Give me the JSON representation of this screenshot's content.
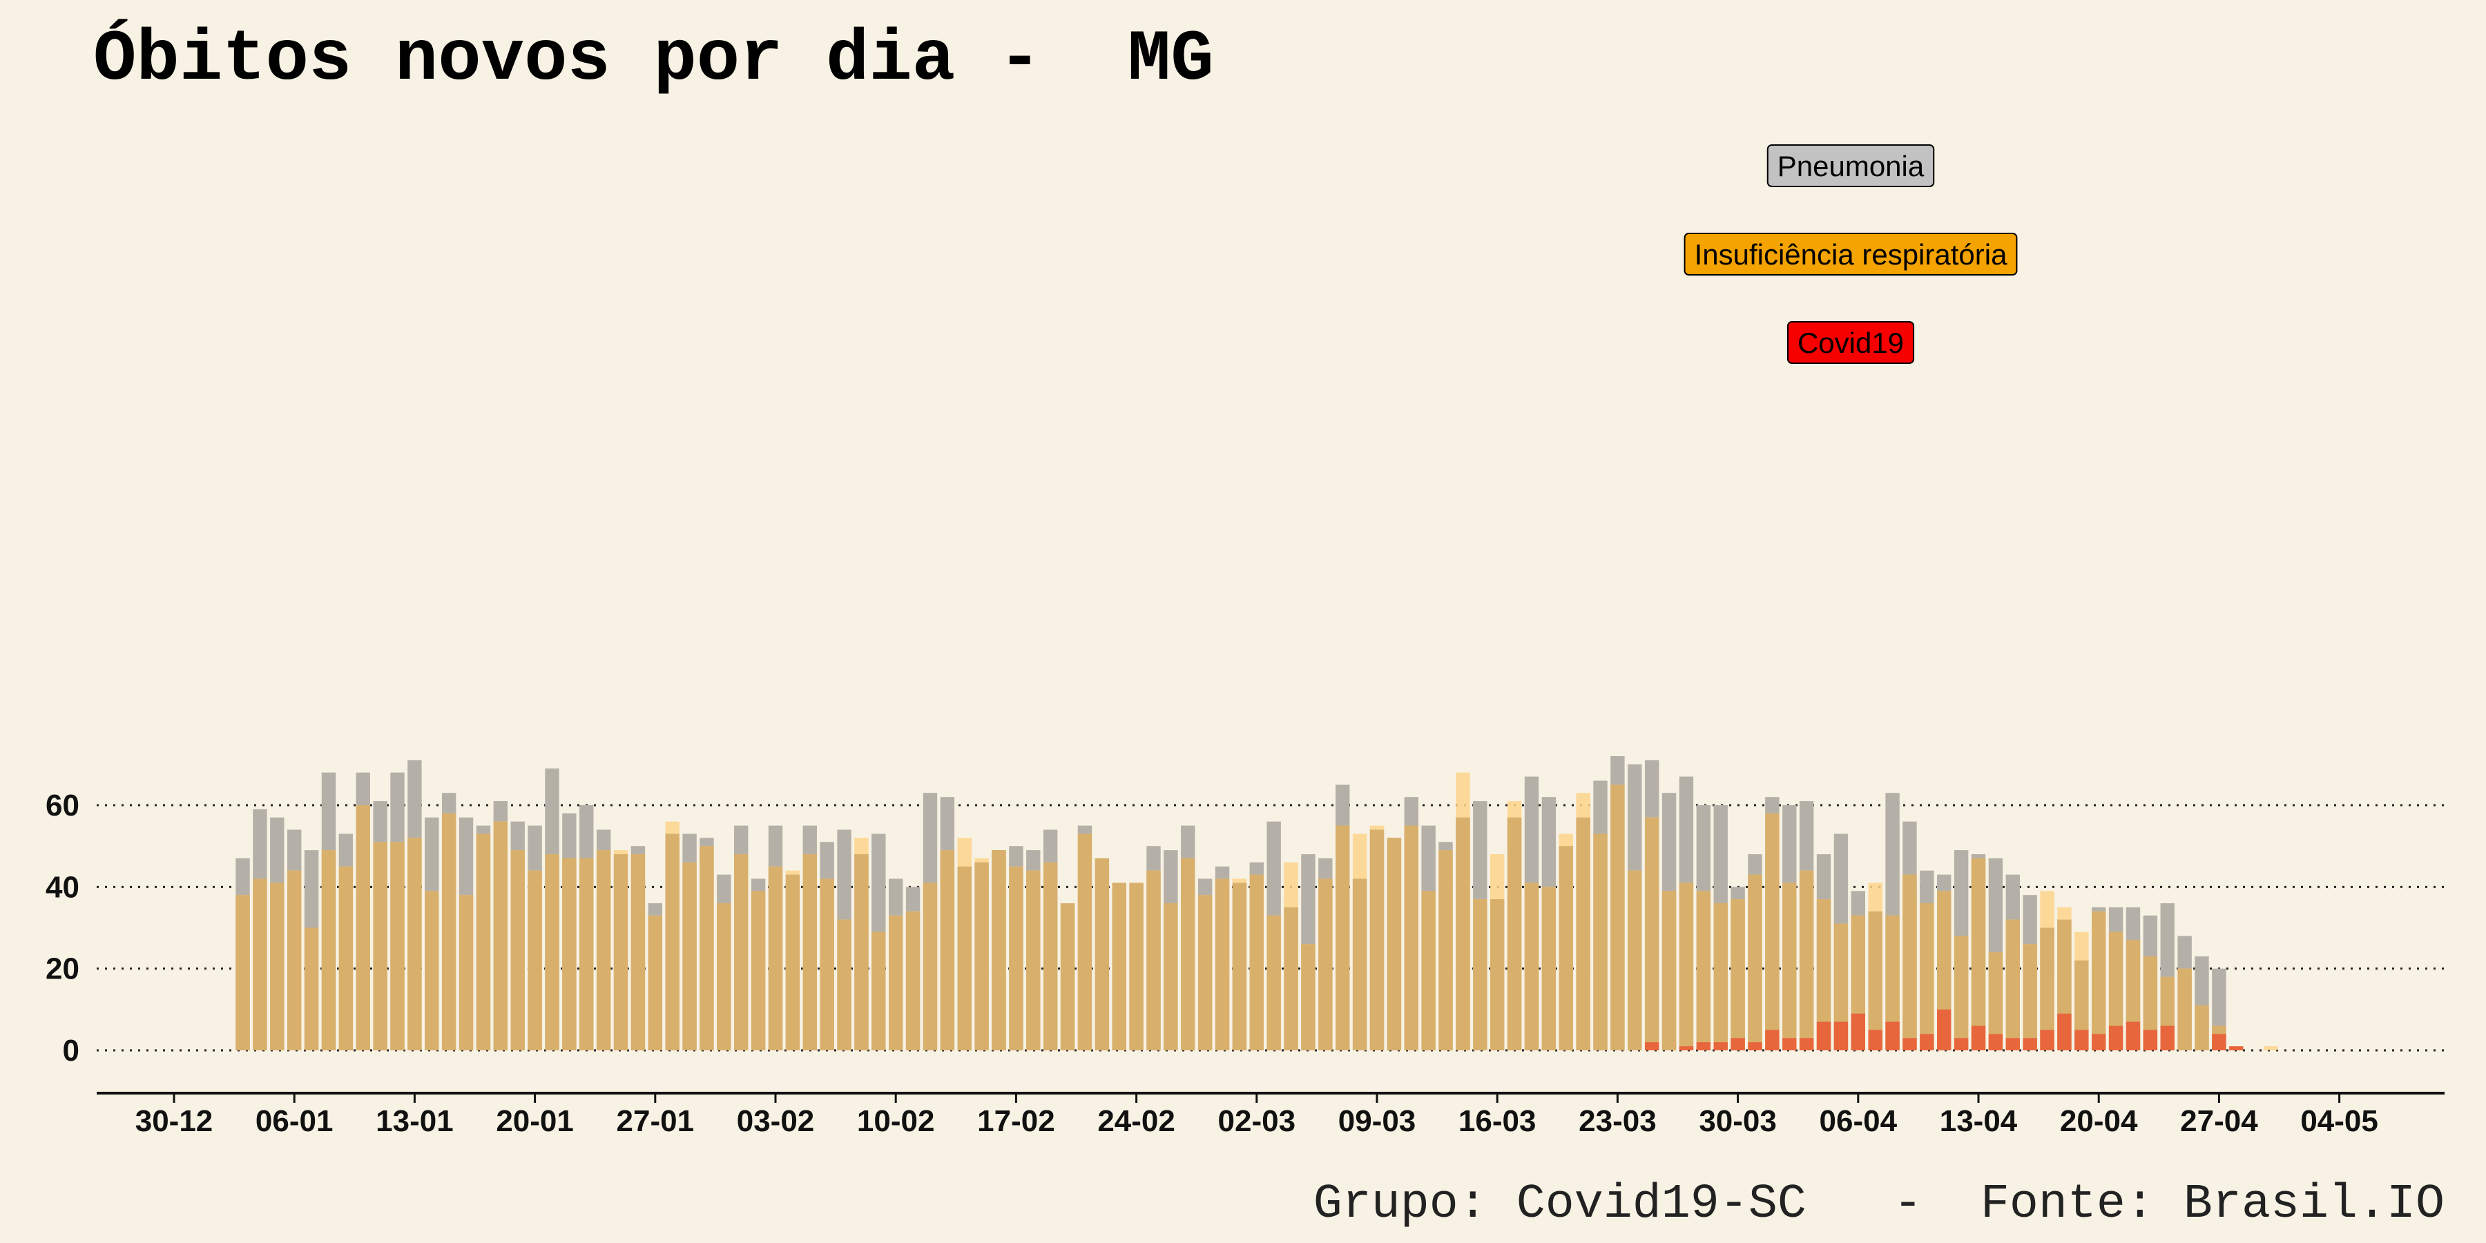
{
  "title": "Óbitos novos por dia -  MG",
  "caption": "Grupo: Covid19-SC   -  Fonte: Brasil.IO",
  "colors": {
    "background": "#f8f2e4",
    "pneumonia": "#b5b0a7",
    "insuficiencia": "#fdd58b",
    "overlap": "#d8b06c",
    "covid": "#e8663c",
    "legend_pneumonia": "#c2c2c2",
    "legend_insuficiencia": "#f5a300",
    "legend_covid": "#f70000"
  },
  "chart_data": {
    "type": "bar",
    "x_start": "2019-12-30",
    "series": [
      {
        "name": "Pneumonia",
        "color": "#b5b0a7",
        "values": [
          0,
          0,
          0,
          0,
          47,
          59,
          57,
          54,
          49,
          68,
          53,
          68,
          61,
          68,
          71,
          57,
          63,
          57,
          55,
          61,
          56,
          55,
          69,
          58,
          60,
          54,
          48,
          50,
          36,
          53,
          53,
          52,
          43,
          55,
          42,
          55,
          43,
          55,
          51,
          54,
          48,
          53,
          42,
          40,
          63,
          62,
          45,
          46,
          49,
          50,
          49,
          54,
          36,
          55,
          47,
          41,
          41,
          50,
          49,
          55,
          42,
          45,
          41,
          46,
          56,
          35,
          48,
          47,
          65,
          42,
          54,
          52,
          62,
          55,
          51,
          57,
          61,
          37,
          57,
          67,
          62,
          50,
          57,
          66,
          72,
          70,
          71,
          63,
          67,
          60,
          60,
          40,
          48,
          62,
          60,
          61,
          48,
          53,
          39,
          34,
          63,
          56,
          44,
          43,
          49,
          48,
          47,
          43,
          38,
          30,
          32,
          22,
          35,
          35,
          35,
          33,
          36,
          28,
          23,
          20,
          0,
          0,
          0
        ]
      },
      {
        "name": "Insuficiência respiratória",
        "color": "#fdd58b",
        "values": [
          0,
          0,
          0,
          0,
          38,
          42,
          41,
          44,
          30,
          49,
          45,
          60,
          51,
          51,
          52,
          39,
          58,
          38,
          53,
          56,
          49,
          44,
          48,
          47,
          47,
          49,
          49,
          48,
          33,
          56,
          46,
          50,
          36,
          48,
          39,
          45,
          44,
          48,
          42,
          32,
          52,
          29,
          33,
          34,
          41,
          49,
          52,
          47,
          49,
          45,
          44,
          46,
          36,
          53,
          47,
          41,
          41,
          44,
          36,
          47,
          38,
          42,
          42,
          43,
          33,
          46,
          26,
          42,
          55,
          53,
          55,
          52,
          55,
          39,
          49,
          68,
          37,
          48,
          61,
          41,
          40,
          53,
          63,
          53,
          65,
          44,
          57,
          39,
          41,
          39,
          36,
          37,
          43,
          58,
          41,
          44,
          37,
          31,
          33,
          41,
          33,
          43,
          36,
          39,
          28,
          47,
          24,
          32,
          26,
          39,
          35,
          29,
          34,
          29,
          27,
          23,
          18,
          20,
          11,
          6,
          0,
          0,
          1
        ]
      },
      {
        "name": "Covid19",
        "color": "#e8663c",
        "values": [
          0,
          0,
          0,
          0,
          0,
          0,
          0,
          0,
          0,
          0,
          0,
          0,
          0,
          0,
          0,
          0,
          0,
          0,
          0,
          0,
          0,
          0,
          0,
          0,
          0,
          0,
          0,
          0,
          0,
          0,
          0,
          0,
          0,
          0,
          0,
          0,
          0,
          0,
          0,
          0,
          0,
          0,
          0,
          0,
          0,
          0,
          0,
          0,
          0,
          0,
          0,
          0,
          0,
          0,
          0,
          0,
          0,
          0,
          0,
          0,
          0,
          0,
          0,
          0,
          0,
          0,
          0,
          0,
          0,
          0,
          0,
          0,
          0,
          0,
          0,
          0,
          0,
          0,
          0,
          0,
          0,
          0,
          0,
          0,
          0,
          0,
          2,
          0,
          1,
          2,
          2,
          3,
          2,
          5,
          3,
          3,
          7,
          7,
          9,
          5,
          7,
          3,
          4,
          10,
          3,
          6,
          4,
          3,
          3,
          5,
          9,
          5,
          4,
          6,
          7,
          5,
          6,
          0,
          0,
          4,
          1,
          0,
          0
        ]
      }
    ],
    "xtick_labels": [
      "30-12",
      "06-01",
      "13-01",
      "20-01",
      "27-01",
      "03-02",
      "10-02",
      "17-02",
      "24-02",
      "02-03",
      "09-03",
      "16-03",
      "23-03",
      "30-03",
      "06-04",
      "13-04",
      "20-04",
      "27-04",
      "04-05"
    ],
    "ytick_labels": [
      "0",
      "20",
      "40",
      "60"
    ],
    "ylim": [
      -3.5,
      74
    ],
    "grid": "horizontal dotted",
    "legend": [
      "Pneumonia",
      "Insuficiência respiratória",
      "Covid19"
    ],
    "legend_placement": "top-right"
  }
}
